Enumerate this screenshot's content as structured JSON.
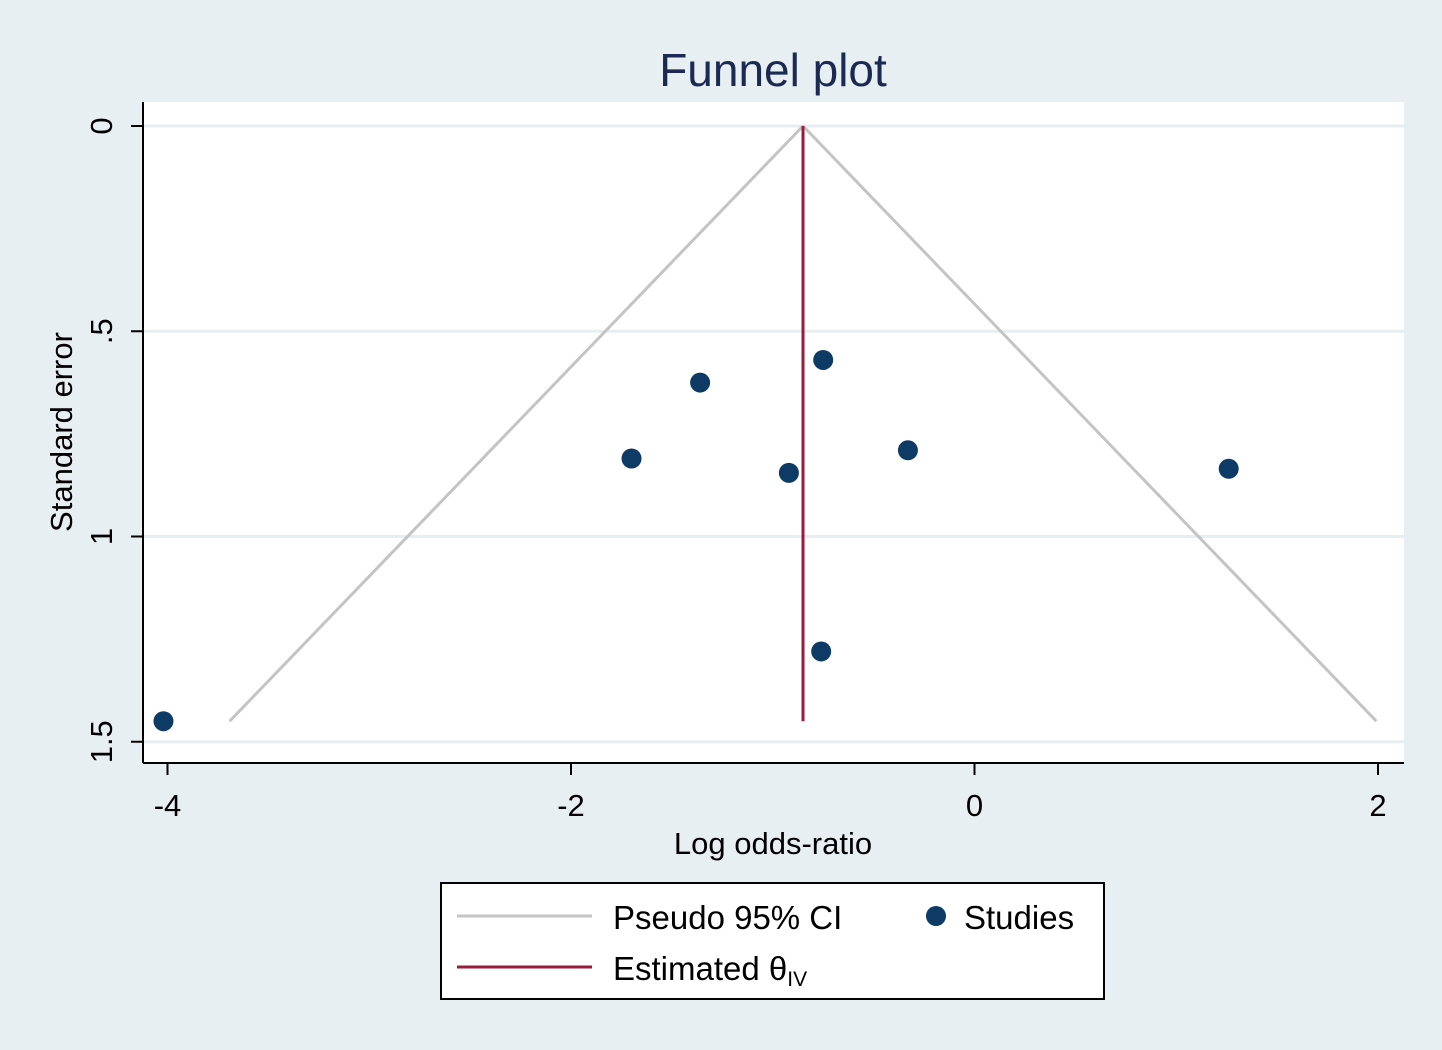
{
  "chart_data": {
    "type": "scatter",
    "title": "Funnel plot",
    "xlabel": "Log odds-ratio",
    "ylabel": "Standard error",
    "xlim": [
      -4.05,
      2.1
    ],
    "ylim": [
      -0.05,
      1.55
    ],
    "y_reversed": true,
    "x_ticks": [
      -4,
      -2,
      0,
      2
    ],
    "x_tick_labels": [
      "-4",
      "-2",
      "0",
      "2"
    ],
    "y_ticks": [
      0,
      0.5,
      1,
      1.5
    ],
    "y_tick_labels": [
      "0",
      ".5",
      "1",
      "1.5"
    ],
    "grid": "horizontal",
    "legend_position": "bottom",
    "estimate": 0.0,
    "estimate_x": -0.85,
    "ci_z": 1.96,
    "se_max": 1.45,
    "colors": {
      "points": "#0d3b66",
      "estimate": "#9b1c3a",
      "ci": "#c4c4c4",
      "grid": "#e7eef2",
      "plot_bg": "#ffffff",
      "page_bg": "#e8eff3",
      "title": "#1a2a52"
    },
    "series": [
      {
        "name": "Studies",
        "points": [
          {
            "x": -0.75,
            "y": 0.57
          },
          {
            "x": -1.36,
            "y": 0.625
          },
          {
            "x": -1.7,
            "y": 0.81
          },
          {
            "x": -0.92,
            "y": 0.845
          },
          {
            "x": -0.33,
            "y": 0.79
          },
          {
            "x": 1.26,
            "y": 0.835
          },
          {
            "x": -0.76,
            "y": 1.28
          },
          {
            "x": -4.02,
            "y": 1.45
          }
        ]
      }
    ],
    "legend": {
      "ci_label": "Pseudo 95% CI",
      "studies_label": "Studies",
      "estimate_label": "Estimated θ",
      "estimate_subscript": "IV"
    }
  }
}
